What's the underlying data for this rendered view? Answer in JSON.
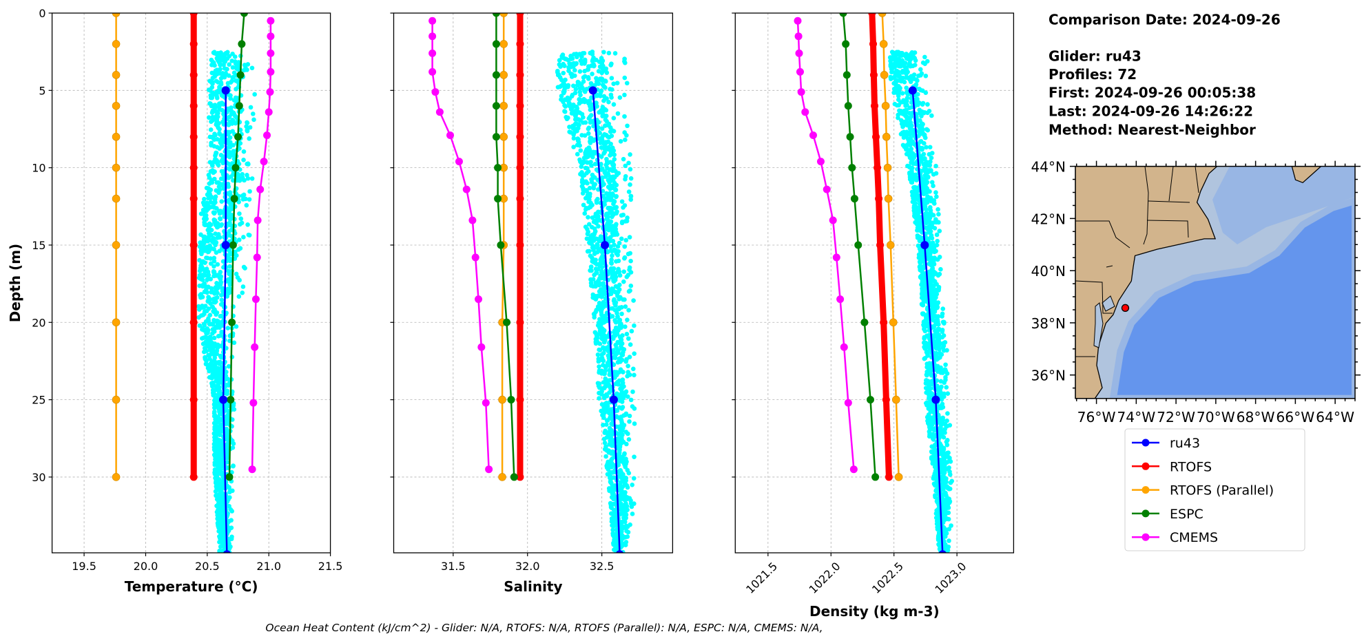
{
  "info": {
    "comparison_date": "Comparison Date: 2024-09-26",
    "glider": "Glider: ru43",
    "profiles": "Profiles: 72",
    "first": "First: 2024-09-26 00:05:38",
    "last": "Last: 2024-09-26 14:26:22",
    "method": "Method: Nearest-Neighbor"
  },
  "footer": "Ocean Heat Content (kJ/cm^2) - Glider: N/A,  RTOFS: N/A,  RTOFS (Parallel): N/A,  ESPC: N/A,  CMEMS: N/A,",
  "legend": [
    {
      "label": "ru43",
      "color": "#0000ff"
    },
    {
      "label": "RTOFS",
      "color": "#ff0000"
    },
    {
      "label": "RTOFS (Parallel)",
      "color": "#ffa500"
    },
    {
      "label": "ESPC",
      "color": "#008000"
    },
    {
      "label": "CMEMS",
      "color": "#ff00ff"
    }
  ],
  "chart_data": [
    {
      "type": "line",
      "panel": "temperature",
      "xlabel": "Temperature (°C)",
      "ylabel": "Depth (m)",
      "xlim": [
        19.24,
        21.5
      ],
      "ylim": [
        34.9,
        0
      ],
      "y_inverted": true,
      "grid": true,
      "xticks": [
        "19.5",
        "20.0",
        "20.5",
        "21.0",
        "21.5"
      ],
      "yticks": [
        "0",
        "5",
        "10",
        "15",
        "20",
        "25",
        "30"
      ],
      "model_depths": [
        0,
        2,
        4,
        6,
        8,
        10,
        12,
        15,
        20,
        25,
        30
      ],
      "cmems_depths": [
        0.5,
        1.5,
        2.6,
        3.8,
        5.1,
        6.4,
        7.9,
        9.6,
        11.4,
        13.4,
        15.8,
        18.5,
        21.6,
        25.2,
        29.5
      ],
      "glider_depths": [
        5,
        15,
        25,
        35
      ],
      "series": [
        {
          "name": "RTOFS",
          "color": "#ff0000",
          "values": [
            20.39,
            20.39,
            20.39,
            20.39,
            20.39,
            20.39,
            20.39,
            20.39,
            20.39,
            20.39,
            20.39
          ]
        },
        {
          "name": "RTOFS (Parallel)",
          "color": "#ffa500",
          "values": [
            19.76,
            19.76,
            19.76,
            19.76,
            19.76,
            19.76,
            19.76,
            19.76,
            19.76,
            19.76,
            19.76
          ]
        },
        {
          "name": "ESPC",
          "color": "#008000",
          "values": [
            20.8,
            20.78,
            20.77,
            20.76,
            20.75,
            20.73,
            20.72,
            20.71,
            20.7,
            20.69,
            20.68
          ]
        },
        {
          "name": "CMEMS",
          "color": "#ff00ff",
          "values": [
            21.015,
            21.015,
            21.015,
            21.015,
            21.01,
            21.0,
            20.985,
            20.96,
            20.93,
            20.91,
            20.905,
            20.895,
            20.885,
            20.875,
            20.865
          ]
        },
        {
          "name": "ru43",
          "color": "#0000ff",
          "values": [
            20.65,
            20.65,
            20.63,
            20.66
          ]
        }
      ],
      "glider_raw_color": "#00ffff",
      "glider_raw_envelope": [
        [
          2.5,
          20.55,
          20.74
        ],
        [
          3,
          20.53,
          20.88
        ],
        [
          5,
          20.51,
          20.89
        ],
        [
          10,
          20.52,
          20.87
        ],
        [
          13,
          20.45,
          20.85
        ],
        [
          15,
          20.44,
          20.84
        ],
        [
          18,
          20.43,
          20.8
        ],
        [
          20,
          20.43,
          20.74
        ],
        [
          22,
          20.47,
          20.72
        ],
        [
          25,
          20.55,
          20.72
        ],
        [
          30,
          20.56,
          20.71
        ],
        [
          34.9,
          20.6,
          20.7
        ]
      ]
    },
    {
      "type": "line",
      "panel": "salinity",
      "xlabel": "Salinity",
      "xlim": [
        31.1,
        32.976
      ],
      "ylim": [
        34.9,
        0
      ],
      "y_inverted": true,
      "grid": true,
      "xticks": [
        "31.5",
        "32.0",
        "32.5"
      ],
      "yticks": [
        "0",
        "5",
        "10",
        "15",
        "20",
        "25",
        "30"
      ],
      "model_depths": [
        0,
        2,
        4,
        6,
        8,
        10,
        12,
        15,
        20,
        25,
        30
      ],
      "cmems_depths": [
        0.5,
        1.5,
        2.6,
        3.8,
        5.1,
        6.4,
        7.9,
        9.6,
        11.4,
        13.4,
        15.8,
        18.5,
        21.6,
        25.2,
        29.5
      ],
      "glider_depths": [
        5,
        15,
        25,
        35
      ],
      "series": [
        {
          "name": "RTOFS",
          "color": "#ff0000",
          "values": [
            31.95,
            31.95,
            31.95,
            31.95,
            31.95,
            31.95,
            31.95,
            31.95,
            31.95,
            31.95,
            31.95
          ]
        },
        {
          "name": "RTOFS (Parallel)",
          "color": "#ffa500",
          "values": [
            31.84,
            31.84,
            31.84,
            31.84,
            31.84,
            31.84,
            31.84,
            31.84,
            31.83,
            31.83,
            31.83
          ]
        },
        {
          "name": "ESPC",
          "color": "#008000",
          "values": [
            31.79,
            31.79,
            31.79,
            31.79,
            31.79,
            31.8,
            31.8,
            31.82,
            31.86,
            31.89,
            31.91
          ]
        },
        {
          "name": "CMEMS",
          "color": "#ff00ff",
          "values": [
            31.36,
            31.36,
            31.36,
            31.36,
            31.38,
            31.41,
            31.48,
            31.54,
            31.59,
            31.63,
            31.65,
            31.67,
            31.69,
            31.72,
            31.74
          ]
        },
        {
          "name": "ru43",
          "color": "#0000ff",
          "values": [
            32.44,
            32.52,
            32.58,
            32.62
          ]
        }
      ],
      "glider_raw_color": "#00ffff",
      "glider_raw_envelope": [
        [
          2.5,
          32.2,
          32.67
        ],
        [
          5,
          32.2,
          32.67
        ],
        [
          10,
          32.35,
          32.7
        ],
        [
          15,
          32.4,
          32.7
        ],
        [
          20,
          32.45,
          32.72
        ],
        [
          25,
          32.48,
          32.72
        ],
        [
          30,
          32.54,
          32.72
        ],
        [
          32,
          32.56,
          32.72
        ],
        [
          34.9,
          32.58,
          32.65
        ]
      ]
    },
    {
      "type": "line",
      "panel": "density",
      "xlabel": "Density (kg m-3)",
      "xlim": [
        1021.24,
        1023.45
      ],
      "ylim": [
        34.9,
        0
      ],
      "y_inverted": true,
      "grid": true,
      "xticks": [
        "1021.5",
        "1022.0",
        "1022.5",
        "1023.0"
      ],
      "xtick_rotation_deg": 45,
      "yticks": [
        "0",
        "5",
        "10",
        "15",
        "20",
        "25",
        "30"
      ],
      "model_depths": [
        0,
        2,
        4,
        6,
        8,
        10,
        12,
        15,
        20,
        25,
        30
      ],
      "cmems_depths": [
        0.5,
        1.5,
        2.6,
        3.8,
        5.1,
        6.4,
        7.9,
        9.6,
        11.4,
        13.4,
        15.8,
        18.5,
        21.6,
        25.2,
        29.5
      ],
      "glider_depths": [
        5,
        15,
        25,
        35
      ],
      "series": [
        {
          "name": "RTOFS",
          "color": "#ff0000",
          "values": [
            1022.326,
            1022.335,
            1022.34,
            1022.346,
            1022.357,
            1022.368,
            1022.379,
            1022.39,
            1022.418,
            1022.438,
            1022.46
          ]
        },
        {
          "name": "RTOFS (Parallel)",
          "color": "#ffa500",
          "values": [
            1022.407,
            1022.418,
            1022.423,
            1022.434,
            1022.44,
            1022.45,
            1022.456,
            1022.473,
            1022.495,
            1022.517,
            1022.538
          ]
        },
        {
          "name": "ESPC",
          "color": "#008000",
          "values": [
            1022.097,
            1022.117,
            1022.126,
            1022.137,
            1022.152,
            1022.167,
            1022.187,
            1022.216,
            1022.266,
            1022.313,
            1022.352
          ]
        },
        {
          "name": "CMEMS",
          "color": "#ff00ff",
          "values": [
            1021.736,
            1021.742,
            1021.747,
            1021.755,
            1021.764,
            1021.795,
            1021.859,
            1021.919,
            1021.967,
            1022.016,
            1022.044,
            1022.073,
            1022.104,
            1022.137,
            1022.181
          ]
        },
        {
          "name": "ru43",
          "color": "#0000ff",
          "values": [
            1022.648,
            1022.744,
            1022.832,
            1022.886
          ]
        }
      ],
      "glider_raw_color": "#00ffff",
      "glider_raw_envelope": [
        [
          2.5,
          1022.46,
          1022.76
        ],
        [
          5,
          1022.48,
          1022.79
        ],
        [
          10,
          1022.61,
          1022.84
        ],
        [
          15,
          1022.69,
          1022.87
        ],
        [
          20,
          1022.73,
          1022.91
        ],
        [
          25,
          1022.75,
          1022.94
        ],
        [
          30,
          1022.81,
          1022.96
        ],
        [
          32,
          1022.83,
          1022.97
        ],
        [
          34.9,
          1022.86,
          1022.93
        ]
      ]
    }
  ],
  "map": {
    "lon_range": [
      -77.06,
      -63.0
    ],
    "lat_range": [
      35.1,
      44.0
    ],
    "lat_ticks": [
      "44°N",
      "42°N",
      "40°N",
      "38°N",
      "36°N"
    ],
    "lon_ticks": [
      "76°W",
      "74°W",
      "72°W",
      "70°W",
      "68°W",
      "66°W",
      "64°W"
    ],
    "glider_position": {
      "lon": -74.55,
      "lat": 38.57
    },
    "colors": {
      "land": "#d2b48c",
      "shelf": "#b0c4de",
      "slope": "#98b6e4",
      "deep": "#6495ed",
      "glider_marker": "#ff0000"
    }
  }
}
